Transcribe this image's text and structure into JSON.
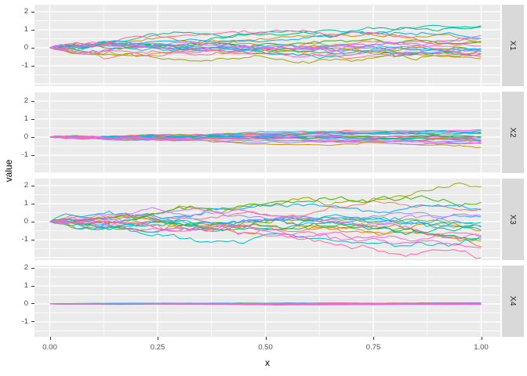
{
  "chart_data": {
    "type": "line",
    "kind": "brownian-random-walk-facets",
    "title": "",
    "xlabel": "x",
    "ylabel": "value",
    "x_range": [
      0,
      1
    ],
    "x_ticks": [
      {
        "label": "0.00",
        "value": 0
      },
      {
        "label": "0.25",
        "value": 0.25
      },
      {
        "label": "0.50",
        "value": 0.5
      },
      {
        "label": "0.75",
        "value": 0.75
      },
      {
        "label": "1.00",
        "value": 1
      }
    ],
    "y_ticks": [
      {
        "label": "2",
        "value": 2
      },
      {
        "label": "1",
        "value": 1
      },
      {
        "label": "0",
        "value": 0
      },
      {
        "label": "-1",
        "value": -1
      }
    ],
    "grid": {
      "major_x_every": 0.25,
      "minor_x_every": 0.125,
      "major_y_every": 1,
      "minor_y_every": 0.5
    },
    "legend": "none",
    "n_series_per_facet": 20,
    "n_points": 81,
    "facets": [
      {
        "label": "X1",
        "ylim": [
          -2.13,
          2.39
        ],
        "sigma": 0.5,
        "amplitude": 1.25,
        "seed": 42,
        "start_value": 0,
        "end_spread": [
          -1.2,
          1.1
        ]
      },
      {
        "label": "X2",
        "ylim": [
          -2.0,
          2.52
        ],
        "sigma": 0.22,
        "amplitude": 0.58,
        "seed": 7,
        "start_value": 0,
        "end_spread": [
          -0.55,
          0.5
        ]
      },
      {
        "label": "X3",
        "ylim": [
          -2.13,
          2.39
        ],
        "sigma": 1.0,
        "amplitude": 2.15,
        "seed": 1234,
        "start_value": 0,
        "end_spread": [
          -1.6,
          2.1
        ]
      },
      {
        "label": "X4",
        "ylim": [
          -1.83,
          2.13
        ],
        "sigma": 0.02,
        "amplitude": 0.07,
        "seed": 99,
        "start_value": 0,
        "end_spread": [
          -0.07,
          0.07
        ]
      }
    ],
    "series_colors": [
      "#F8766D",
      "#EA8331",
      "#D89000",
      "#C09B00",
      "#A3A500",
      "#7CAE00",
      "#39B600",
      "#00BB4E",
      "#00BF7D",
      "#00C1A3",
      "#00BFC4",
      "#00BAE0",
      "#00B0F6",
      "#35A2FF",
      "#9590FF",
      "#B983FF",
      "#E76BF3",
      "#FA62DB",
      "#FF61CC",
      "#FF67A4"
    ]
  },
  "theme": {
    "panel_bg": "#EBEBEB",
    "strip_bg": "#D9D9D9",
    "grid_color": "#FFFFFF",
    "tick_color": "#333333",
    "axis_text_color": "#4D4D4D",
    "strip_text_color": "#1A1A1A",
    "title_color": "#000000"
  }
}
